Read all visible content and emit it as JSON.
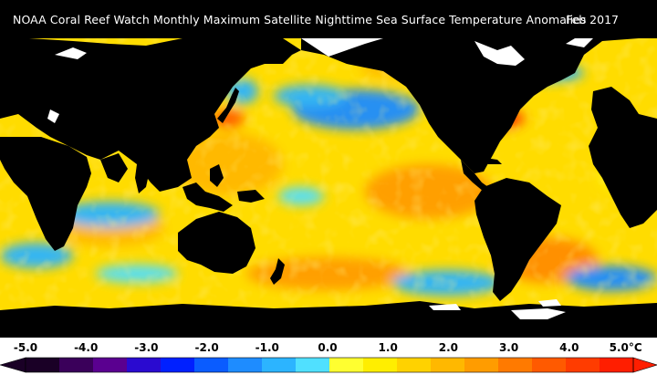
{
  "map": {
    "title": "NOAA Coral Reef Watch Monthly Maximum Satellite Nighttime Sea Surface Temperature Anomalies",
    "date": "Feb 2017"
  },
  "legend": {
    "tick_labels": [
      "-5.0",
      "-4.0",
      "-3.0",
      "-2.0",
      "-1.0",
      "0.0",
      "1.0",
      "2.0",
      "3.0",
      "4.0",
      "5.0"
    ],
    "unit": "°C",
    "colors": [
      "#1a0026",
      "#3a005a",
      "#5a0090",
      "#2a0ad0",
      "#0020ff",
      "#0a5cff",
      "#1e8cff",
      "#2cb4ff",
      "#50e0ff",
      "#ffff30",
      "#ffee00",
      "#ffd200",
      "#ffb800",
      "#ff9c00",
      "#ff7a00",
      "#ff5a00",
      "#ff3c00",
      "#ff1e00"
    ]
  }
}
